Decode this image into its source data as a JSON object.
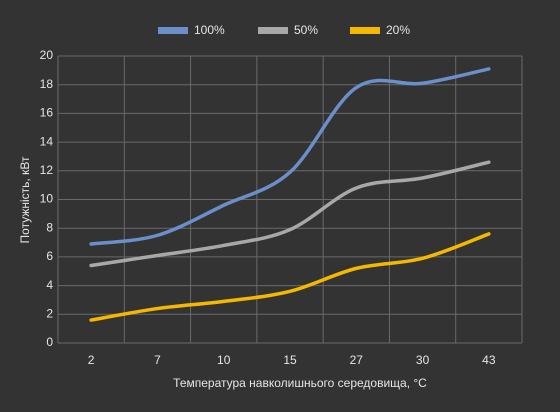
{
  "chart_data": {
    "type": "line",
    "x_label": "Температура навколишнього середовища, °C",
    "y_label": "Потужність, кВт",
    "categories": [
      "2",
      "7",
      "10",
      "15",
      "27",
      "30",
      "43"
    ],
    "series": [
      {
        "name": "100%",
        "color": "#6b8fca",
        "values": [
          6.9,
          7.5,
          9.6,
          11.9,
          17.8,
          18.1,
          19.1
        ]
      },
      {
        "name": "50%",
        "color": "#a8a8a8",
        "values": [
          5.4,
          6.1,
          6.8,
          7.9,
          10.8,
          11.5,
          12.6
        ]
      },
      {
        "name": "20%",
        "color": "#f5b800",
        "values": [
          1.6,
          2.4,
          2.9,
          3.6,
          5.2,
          5.9,
          7.6
        ]
      }
    ],
    "ylim": [
      0,
      20
    ],
    "yticks": [
      0,
      2,
      4,
      6,
      8,
      10,
      12,
      14,
      16,
      18,
      20
    ],
    "grid": true
  }
}
